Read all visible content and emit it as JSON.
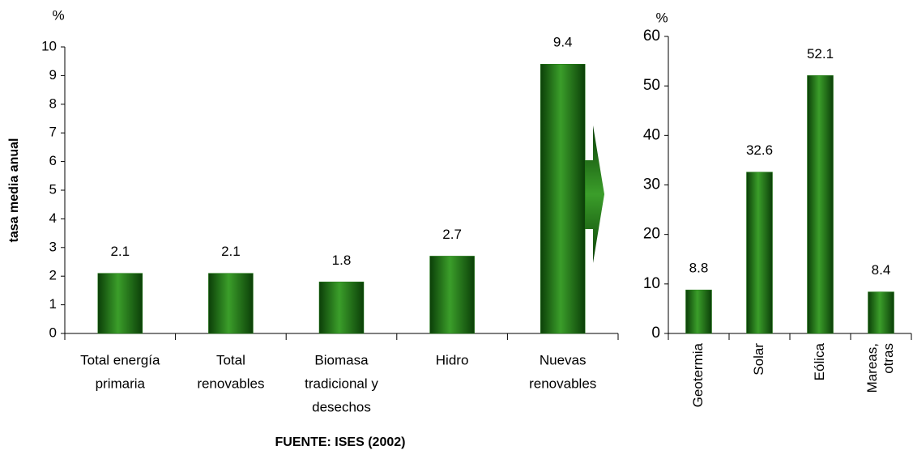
{
  "chart_data": [
    {
      "type": "bar",
      "unit_label": "%",
      "ylabel": "tasa media anual",
      "categories": [
        [
          "Total energía",
          "primaria"
        ],
        [
          "Total",
          "renovables"
        ],
        [
          "Biomasa",
          "tradicional y",
          "desechos"
        ],
        [
          "Hidro"
        ],
        [
          "Nuevas",
          "renovables"
        ]
      ],
      "values": [
        2.1,
        2.1,
        1.8,
        2.7,
        9.4
      ],
      "color": "#1f7a12",
      "ylim": [
        0,
        10
      ],
      "yticks": [
        0,
        1,
        2,
        3,
        4,
        5,
        6,
        7,
        8,
        9,
        10
      ]
    },
    {
      "type": "bar",
      "unit_label": "%",
      "categories": [
        [
          "Geotermia"
        ],
        [
          "Solar"
        ],
        [
          "Eólica"
        ],
        [
          "Mareas,",
          "otras"
        ]
      ],
      "values": [
        8.8,
        32.6,
        52.1,
        8.4
      ],
      "color": "#1f7a12",
      "ylim": [
        0,
        60
      ],
      "yticks": [
        0,
        10,
        20,
        30,
        40,
        50,
        60
      ]
    }
  ],
  "source": "FUENTE: ISES (2002)"
}
